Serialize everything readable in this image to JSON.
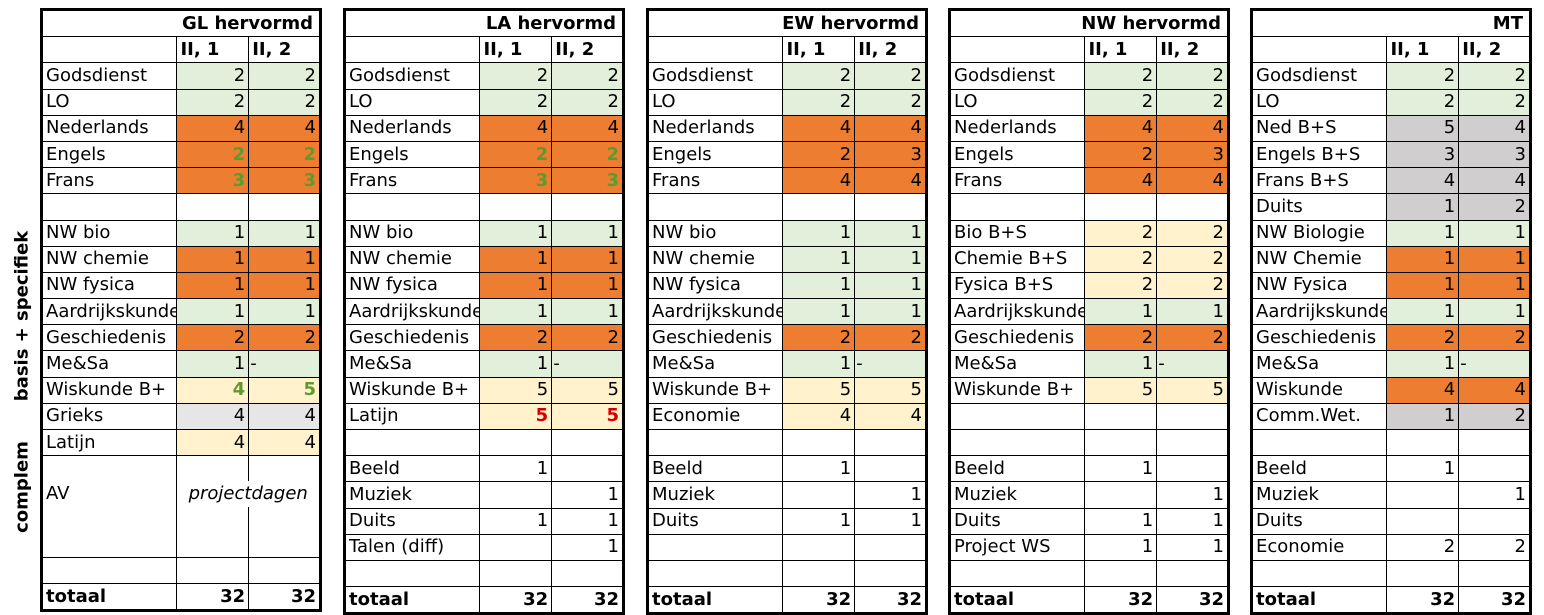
{
  "side_labels": {
    "basis": "basis + specifiek",
    "complem": "complem"
  },
  "colors": {
    "green": "#e2efda",
    "orange": "#ed7d31",
    "yellow": "#fff2cc",
    "silver": "#d0cece",
    "lightgray": "#e7e6e6",
    "green_text": "#5f9a2e",
    "red_text": "#d20000"
  },
  "blocks": [
    {
      "title": "GL hervormd",
      "col1": "II, 1",
      "col2": "II, 2",
      "rows": [
        {
          "label": "Godsdienst",
          "v1": "2",
          "v2": "2",
          "bg": "g"
        },
        {
          "label": "LO",
          "v1": "2",
          "v2": "2",
          "bg": "g"
        },
        {
          "label": "Nederlands",
          "v1": "4",
          "v2": "4",
          "bg": "o"
        },
        {
          "label": "Engels",
          "v1": "2",
          "v2": "2",
          "bg": "o",
          "fc": "green"
        },
        {
          "label": "Frans",
          "v1": "3",
          "v2": "3",
          "bg": "o",
          "fc": "green"
        },
        {
          "label": "",
          "v1": "",
          "v2": "",
          "bg": ""
        },
        {
          "label": "NW bio",
          "v1": "1",
          "v2": "1",
          "bg": "g"
        },
        {
          "label": "NW chemie",
          "v1": "1",
          "v2": "1",
          "bg": "o"
        },
        {
          "label": "NW fysica",
          "v1": "1",
          "v2": "1",
          "bg": "o"
        },
        {
          "label": "Aardrijkskunde",
          "v1": "1",
          "v2": "1",
          "bg": "g"
        },
        {
          "label": "Geschiedenis",
          "v1": "2",
          "v2": "2",
          "bg": "o"
        },
        {
          "label": "Me&Sa",
          "v1": "1",
          "v2": "-",
          "bg": "g"
        },
        {
          "label": "Wiskunde B+",
          "v1": "4",
          "v2": "5",
          "bg": "y",
          "fc": "green"
        },
        {
          "label": "Grieks",
          "v1": "4",
          "v2": "4",
          "bg": "l"
        },
        {
          "label": "Latijn",
          "v1": "4",
          "v2": "4",
          "bg": "y"
        },
        {
          "label": "",
          "v1": "",
          "v2": "",
          "bg": "",
          "nob": true
        },
        {
          "label": "AV",
          "v1": "projectdagen",
          "v2": "",
          "bg": "",
          "nob": true,
          "span": true
        },
        {
          "label": "",
          "v1": "",
          "v2": "",
          "bg": "",
          "nob": true
        },
        {
          "label": "",
          "v1": "",
          "v2": "",
          "bg": "",
          "nob": true
        },
        {
          "label": "",
          "v1": "",
          "v2": "",
          "bg": ""
        },
        {
          "label": "totaal",
          "v1": "32",
          "v2": "32",
          "bg": "",
          "total": true
        }
      ]
    },
    {
      "title": "LA hervormd",
      "col1": "II, 1",
      "col2": "II, 2",
      "rows": [
        {
          "label": "Godsdienst",
          "v1": "2",
          "v2": "2",
          "bg": "g"
        },
        {
          "label": "LO",
          "v1": "2",
          "v2": "2",
          "bg": "g"
        },
        {
          "label": "Nederlands",
          "v1": "4",
          "v2": "4",
          "bg": "o"
        },
        {
          "label": "Engels",
          "v1": "2",
          "v2": "2",
          "bg": "o",
          "fc": "green"
        },
        {
          "label": "Frans",
          "v1": "3",
          "v2": "3",
          "bg": "o",
          "fc": "green"
        },
        {
          "label": "",
          "v1": "",
          "v2": "",
          "bg": ""
        },
        {
          "label": "NW bio",
          "v1": "1",
          "v2": "1",
          "bg": "g"
        },
        {
          "label": "NW chemie",
          "v1": "1",
          "v2": "1",
          "bg": "o"
        },
        {
          "label": "NW fysica",
          "v1": "1",
          "v2": "1",
          "bg": "o"
        },
        {
          "label": "Aardrijkskunde",
          "v1": "1",
          "v2": "1",
          "bg": "g"
        },
        {
          "label": "Geschiedenis",
          "v1": "2",
          "v2": "2",
          "bg": "o"
        },
        {
          "label": "Me&Sa",
          "v1": "1",
          "v2": "-",
          "bg": "g"
        },
        {
          "label": "Wiskunde B+",
          "v1": "5",
          "v2": "5",
          "bg": "y"
        },
        {
          "label": "Latijn",
          "v1": "5",
          "v2": "5",
          "bg": "y",
          "fc": "red"
        },
        {
          "label": "",
          "v1": "",
          "v2": "",
          "bg": ""
        },
        {
          "label": "Beeld",
          "v1": "1",
          "v2": "",
          "bg": ""
        },
        {
          "label": "Muziek",
          "v1": "",
          "v2": "1",
          "bg": ""
        },
        {
          "label": "Duits",
          "v1": "1",
          "v2": "1",
          "bg": ""
        },
        {
          "label": "Talen (diff)",
          "v1": "",
          "v2": "1",
          "bg": ""
        },
        {
          "label": "",
          "v1": "",
          "v2": "",
          "bg": ""
        },
        {
          "label": "totaal",
          "v1": "32",
          "v2": "32",
          "bg": "",
          "total": true
        }
      ]
    },
    {
      "title": "EW hervormd",
      "col1": "II, 1",
      "col2": "II, 2",
      "rows": [
        {
          "label": "Godsdienst",
          "v1": "2",
          "v2": "2",
          "bg": "g"
        },
        {
          "label": "LO",
          "v1": "2",
          "v2": "2",
          "bg": "g"
        },
        {
          "label": "Nederlands",
          "v1": "4",
          "v2": "4",
          "bg": "o"
        },
        {
          "label": "Engels",
          "v1": "2",
          "v2": "3",
          "bg": "o"
        },
        {
          "label": "Frans",
          "v1": "4",
          "v2": "4",
          "bg": "o"
        },
        {
          "label": "",
          "v1": "",
          "v2": "",
          "bg": ""
        },
        {
          "label": "NW bio",
          "v1": "1",
          "v2": "1",
          "bg": "g"
        },
        {
          "label": "NW chemie",
          "v1": "1",
          "v2": "1",
          "bg": "g"
        },
        {
          "label": "NW fysica",
          "v1": "1",
          "v2": "1",
          "bg": "g"
        },
        {
          "label": "Aardrijkskunde",
          "v1": "1",
          "v2": "1",
          "bg": "g"
        },
        {
          "label": "Geschiedenis",
          "v1": "2",
          "v2": "2",
          "bg": "o"
        },
        {
          "label": "Me&Sa",
          "v1": "1",
          "v2": "-",
          "bg": "g"
        },
        {
          "label": "Wiskunde B+",
          "v1": "5",
          "v2": "5",
          "bg": "y"
        },
        {
          "label": "Economie",
          "v1": "4",
          "v2": "4",
          "bg": "y"
        },
        {
          "label": "",
          "v1": "",
          "v2": "",
          "bg": ""
        },
        {
          "label": "Beeld",
          "v1": "1",
          "v2": "",
          "bg": ""
        },
        {
          "label": "Muziek",
          "v1": "",
          "v2": "1",
          "bg": ""
        },
        {
          "label": "Duits",
          "v1": "1",
          "v2": "1",
          "bg": ""
        },
        {
          "label": "",
          "v1": "",
          "v2": "",
          "bg": ""
        },
        {
          "label": "",
          "v1": "",
          "v2": "",
          "bg": ""
        },
        {
          "label": "totaal",
          "v1": "32",
          "v2": "32",
          "bg": "",
          "total": true
        }
      ]
    },
    {
      "title": "NW hervormd",
      "col1": "II, 1",
      "col2": "II, 2",
      "rows": [
        {
          "label": "Godsdienst",
          "v1": "2",
          "v2": "2",
          "bg": "g"
        },
        {
          "label": "LO",
          "v1": "2",
          "v2": "2",
          "bg": "g"
        },
        {
          "label": "Nederlands",
          "v1": "4",
          "v2": "4",
          "bg": "o"
        },
        {
          "label": "Engels",
          "v1": "2",
          "v2": "3",
          "bg": "o"
        },
        {
          "label": "Frans",
          "v1": "4",
          "v2": "4",
          "bg": "o"
        },
        {
          "label": "",
          "v1": "",
          "v2": "",
          "bg": ""
        },
        {
          "label": "Bio B+S",
          "v1": "2",
          "v2": "2",
          "bg": "y"
        },
        {
          "label": "Chemie B+S",
          "v1": "2",
          "v2": "2",
          "bg": "y"
        },
        {
          "label": "Fysica B+S",
          "v1": "2",
          "v2": "2",
          "bg": "y"
        },
        {
          "label": "Aardrijkskunde",
          "v1": "1",
          "v2": "1",
          "bg": "g"
        },
        {
          "label": "Geschiedenis",
          "v1": "2",
          "v2": "2",
          "bg": "o"
        },
        {
          "label": "Me&Sa",
          "v1": "1",
          "v2": "-",
          "bg": "g"
        },
        {
          "label": "Wiskunde B+",
          "v1": "5",
          "v2": "5",
          "bg": "y"
        },
        {
          "label": "",
          "v1": "",
          "v2": "",
          "bg": "",
          "nob": true
        },
        {
          "label": "",
          "v1": "",
          "v2": "",
          "bg": ""
        },
        {
          "label": "Beeld",
          "v1": "1",
          "v2": "",
          "bg": ""
        },
        {
          "label": "Muziek",
          "v1": "",
          "v2": "1",
          "bg": ""
        },
        {
          "label": "Duits",
          "v1": "1",
          "v2": "1",
          "bg": ""
        },
        {
          "label": "Project WS",
          "v1": "1",
          "v2": "1",
          "bg": ""
        },
        {
          "label": "",
          "v1": "",
          "v2": "",
          "bg": ""
        },
        {
          "label": "totaal",
          "v1": "32",
          "v2": "32",
          "bg": "",
          "total": true
        }
      ]
    },
    {
      "title": "MT",
      "col1": "II, 1",
      "col2": "II, 2",
      "rows": [
        {
          "label": "Godsdienst",
          "v1": "2",
          "v2": "2",
          "bg": "g"
        },
        {
          "label": "LO",
          "v1": "2",
          "v2": "2",
          "bg": "g"
        },
        {
          "label": "Ned B+S",
          "v1": "5",
          "v2": "4",
          "bg": "s"
        },
        {
          "label": "Engels B+S",
          "v1": "3",
          "v2": "3",
          "bg": "s"
        },
        {
          "label": "Frans B+S",
          "v1": "4",
          "v2": "4",
          "bg": "s"
        },
        {
          "label": "Duits",
          "v1": "1",
          "v2": "2",
          "bg": "s"
        },
        {
          "label": "NW Biologie",
          "v1": "1",
          "v2": "1",
          "bg": "g"
        },
        {
          "label": "NW Chemie",
          "v1": "1",
          "v2": "1",
          "bg": "o"
        },
        {
          "label": "NW Fysica",
          "v1": "1",
          "v2": "1",
          "bg": "o"
        },
        {
          "label": "Aardrijkskunde",
          "v1": "1",
          "v2": "1",
          "bg": "g"
        },
        {
          "label": "Geschiedenis",
          "v1": "2",
          "v2": "2",
          "bg": "o"
        },
        {
          "label": "Me&Sa",
          "v1": "1",
          "v2": "-",
          "bg": "g"
        },
        {
          "label": "Wiskunde",
          "v1": "4",
          "v2": "4",
          "bg": "o"
        },
        {
          "label": "Comm.Wet.",
          "v1": "1",
          "v2": "2",
          "bg": "s"
        },
        {
          "label": "",
          "v1": "",
          "v2": "",
          "bg": ""
        },
        {
          "label": "Beeld",
          "v1": "1",
          "v2": "",
          "bg": ""
        },
        {
          "label": "Muziek",
          "v1": "",
          "v2": "1",
          "bg": ""
        },
        {
          "label": "Duits",
          "v1": "",
          "v2": "",
          "bg": ""
        },
        {
          "label": "Economie",
          "v1": "2",
          "v2": "2",
          "bg": ""
        },
        {
          "label": "",
          "v1": "",
          "v2": "",
          "bg": ""
        },
        {
          "label": "totaal",
          "v1": "32",
          "v2": "32",
          "bg": "",
          "total": true
        }
      ]
    }
  ]
}
